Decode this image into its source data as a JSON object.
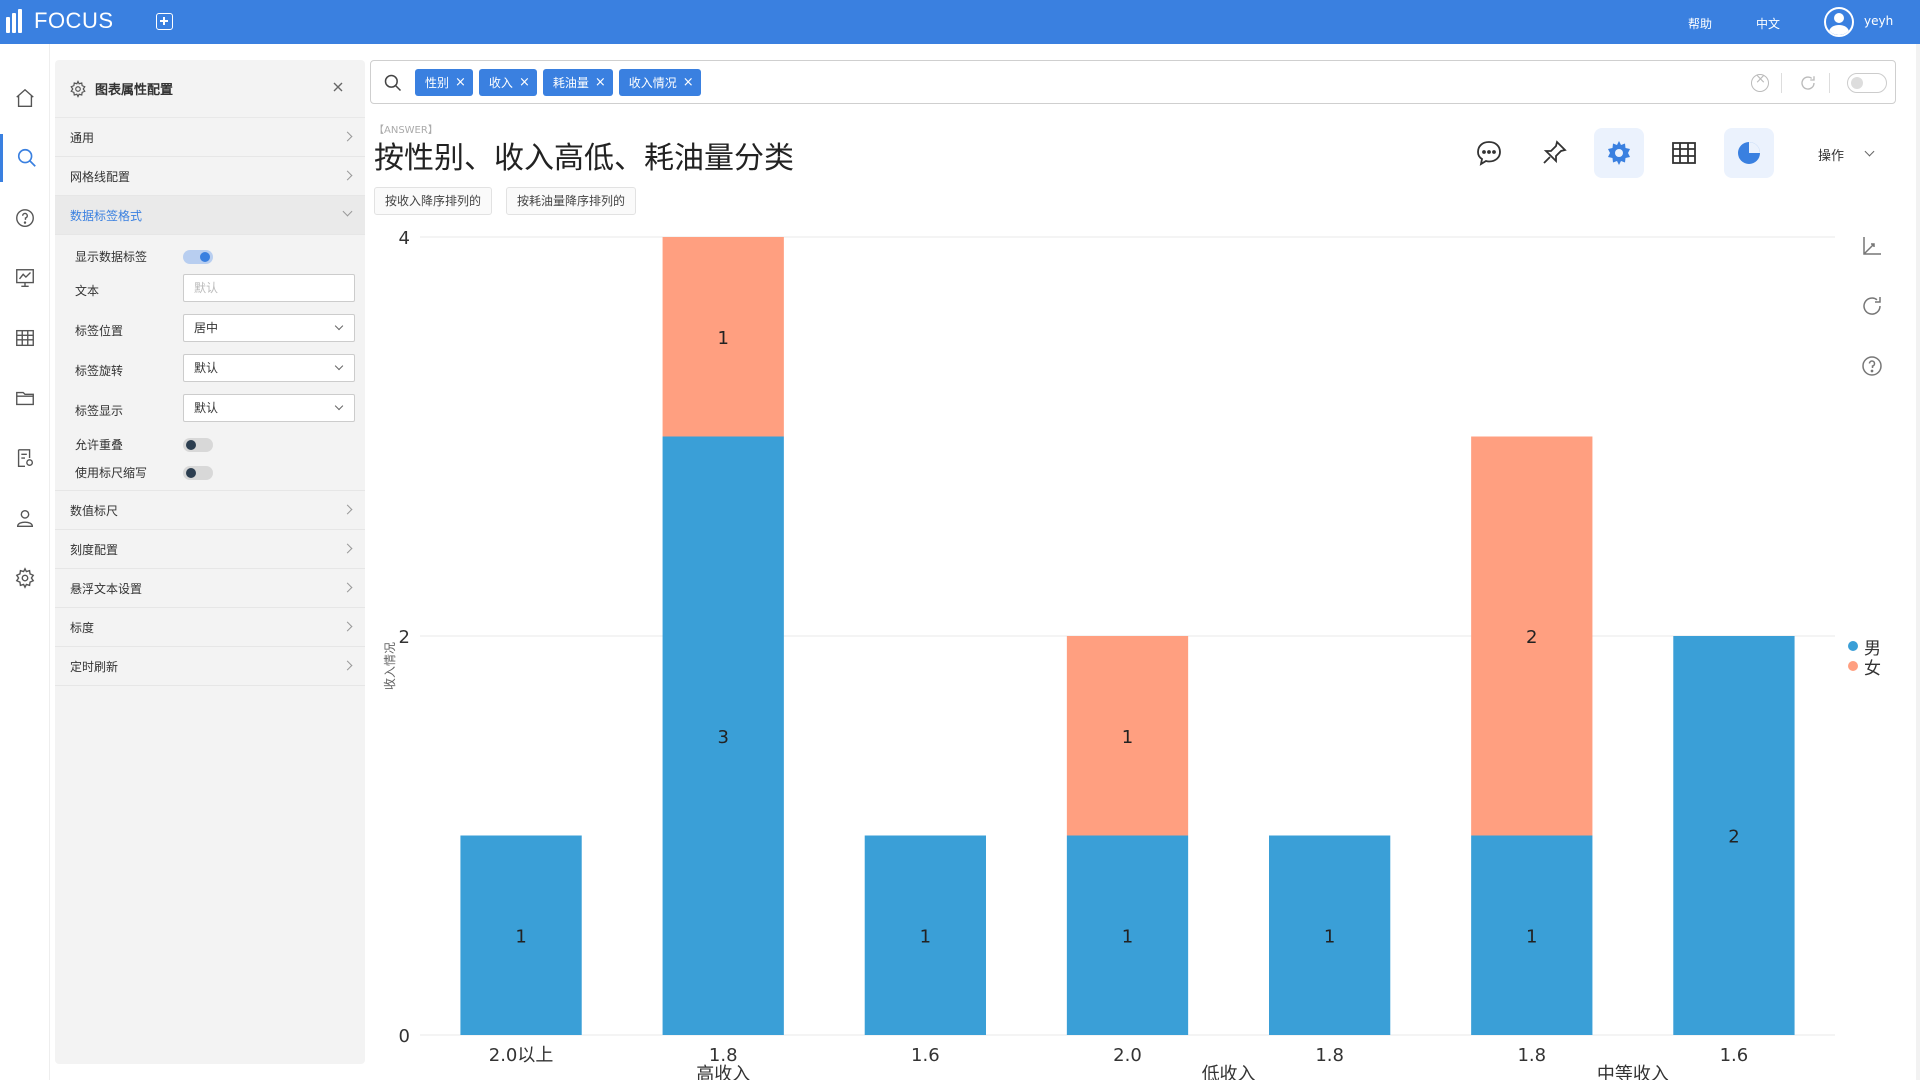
{
  "app": {
    "logo_text": "FOCUS",
    "help_label": "帮助",
    "lang_label": "中文",
    "username": "yeyh"
  },
  "panel": {
    "title": "图表属性配置",
    "sections": {
      "general": "通用",
      "grid": "网格线配置",
      "data_label": "数据标签格式",
      "value_axis": "数值标尺",
      "tick": "刻度配置",
      "tooltip": "悬浮文本设置",
      "scale": "标度",
      "refresh": "定时刷新"
    },
    "data_label_options": {
      "show_label": "显示数据标签",
      "show_label_on": true,
      "text_label": "文本",
      "text_placeholder": "默认",
      "position_label": "标签位置",
      "position_value": "居中",
      "rotation_label": "标签旋转",
      "rotation_value": "默认",
      "display_label": "标签显示",
      "display_value": "默认",
      "overlap_label": "允许重叠",
      "overlap_on": false,
      "abbr_label": "使用标尺缩写",
      "abbr_on": false
    }
  },
  "search": {
    "tags": [
      "性别",
      "收入",
      "耗油量",
      "收入情况"
    ]
  },
  "answer": {
    "tag": "【ANSWER】",
    "title": "按性别、收入高低、耗油量分类",
    "suggestions": [
      "按收入降序排列的",
      "按耗油量降序排列的"
    ],
    "operations_label": "操作"
  },
  "colors": {
    "brand": "#3a80e0",
    "male": "#3a9fd7",
    "female": "#ff9f80"
  },
  "chart_data": {
    "type": "bar",
    "stacked": true,
    "categories": [
      "2.0以上",
      "1.8",
      "1.6",
      "2.0",
      "1.8",
      "1.8",
      "1.6"
    ],
    "groups": [
      {
        "label": "高收入",
        "span": [
          0,
          2
        ]
      },
      {
        "label": "低收入",
        "span": [
          3,
          4
        ]
      },
      {
        "label": "中等收入",
        "span": [
          5,
          6
        ]
      }
    ],
    "series": [
      {
        "name": "男",
        "color": "#3a9fd7",
        "values": [
          1,
          3,
          1,
          1,
          1,
          1,
          2
        ]
      },
      {
        "name": "女",
        "color": "#ff9f80",
        "values": [
          0,
          1,
          0,
          1,
          0,
          2,
          0
        ]
      }
    ],
    "ylabel": "收入情况",
    "ylim": [
      0,
      4
    ],
    "yticks": [
      0,
      2,
      4
    ],
    "grid": true,
    "legend": "right",
    "data_labels": true
  }
}
